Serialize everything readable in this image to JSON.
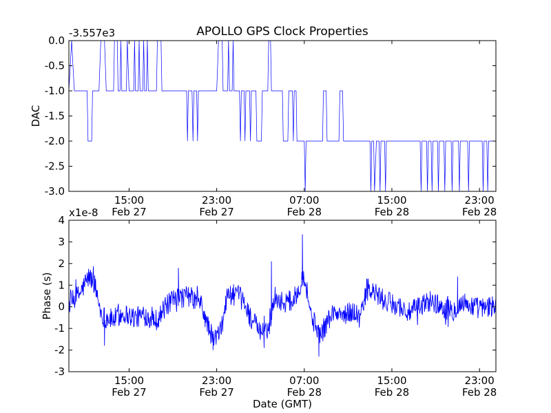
{
  "title": "APOLLO GPS Clock Properties",
  "colors": {
    "line": "#0000ff",
    "axes": "#000000",
    "background": "#ffffff"
  },
  "chart_data": [
    {
      "type": "line",
      "ylabel": "DAC",
      "xlabel": "",
      "offset_label": "-3.557e3",
      "xlim": [
        "Feb 27 09:30",
        "Feb 29 00:30"
      ],
      "ylim": [
        -3.0,
        0.0
      ],
      "yticks": [
        "0.0",
        "-0.5",
        "-1.0",
        "-1.5",
        "-2.0",
        "-2.5",
        "-3.0"
      ],
      "ytick_values": [
        0.0,
        -0.5,
        -1.0,
        -1.5,
        -2.0,
        -2.5,
        -3.0
      ],
      "xticks": [
        {
          "time": "15:00",
          "date": "Feb 27",
          "hour": 15
        },
        {
          "time": "23:00",
          "date": "Feb 27",
          "hour": 23
        },
        {
          "time": "07:00",
          "date": "Feb 28",
          "hour": 31
        },
        {
          "time": "15:00",
          "date": "Feb 28",
          "hour": 39
        },
        {
          "time": "23:00",
          "date": "Feb 28",
          "hour": 47
        }
      ],
      "grid": false,
      "series": [
        {
          "values": [
            {
              "x": "Feb 27 09:30",
              "y": -1.0
            },
            {
              "x": "Feb 27 09:45",
              "y": 0.0
            },
            {
              "x": "Feb 27 10:00",
              "y": -1.0
            },
            {
              "x": "Feb 27 11:10",
              "y": -1.0
            },
            {
              "x": "Feb 27 11:15",
              "y": -2.0
            },
            {
              "x": "Feb 27 11:35",
              "y": -2.0
            },
            {
              "x": "Feb 27 11:40",
              "y": -1.0
            },
            {
              "x": "Feb 27 12:15",
              "y": -1.0
            },
            {
              "x": "Feb 27 12:25",
              "y": 0.0
            },
            {
              "x": "Feb 27 12:45",
              "y": 0.0
            },
            {
              "x": "Feb 27 12:55",
              "y": -1.0
            },
            {
              "x": "Feb 27 13:35",
              "y": -1.0
            },
            {
              "x": "Feb 27 13:40",
              "y": 0.0
            },
            {
              "x": "Feb 27 13:55",
              "y": 0.0
            },
            {
              "x": "Feb 27 14:00",
              "y": -1.0
            },
            {
              "x": "Feb 27 14:10",
              "y": -1.0
            },
            {
              "x": "Feb 27 14:15",
              "y": 0.0
            },
            {
              "x": "Feb 27 14:20",
              "y": -1.0
            },
            {
              "x": "Feb 27 14:45",
              "y": -1.0
            },
            {
              "x": "Feb 27 14:50",
              "y": 0.0
            },
            {
              "x": "Feb 27 15:00",
              "y": -1.0
            },
            {
              "x": "Feb 27 15:25",
              "y": -1.0
            },
            {
              "x": "Feb 27 15:30",
              "y": 0.0
            },
            {
              "x": "Feb 27 15:35",
              "y": -1.0
            },
            {
              "x": "Feb 27 15:50",
              "y": -1.0
            },
            {
              "x": "Feb 27 15:55",
              "y": 0.0
            },
            {
              "x": "Feb 27 16:00",
              "y": -1.0
            },
            {
              "x": "Feb 27 16:15",
              "y": -1.0
            },
            {
              "x": "Feb 27 16:20",
              "y": 0.0
            },
            {
              "x": "Feb 27 16:25",
              "y": -1.0
            },
            {
              "x": "Feb 27 16:35",
              "y": -1.0
            },
            {
              "x": "Feb 27 16:40",
              "y": 0.0
            },
            {
              "x": "Feb 27 16:45",
              "y": -1.0
            },
            {
              "x": "Feb 27 17:30",
              "y": -1.0
            },
            {
              "x": "Feb 27 17:35",
              "y": 0.0
            },
            {
              "x": "Feb 27 17:55",
              "y": 0.0
            },
            {
              "x": "Feb 27 18:00",
              "y": -1.0
            },
            {
              "x": "Feb 27 20:15",
              "y": -1.0
            },
            {
              "x": "Feb 27 20:20",
              "y": -2.0
            },
            {
              "x": "Feb 27 20:25",
              "y": -1.0
            },
            {
              "x": "Feb 27 20:45",
              "y": -1.0
            },
            {
              "x": "Feb 27 20:50",
              "y": -2.0
            },
            {
              "x": "Feb 27 20:55",
              "y": -1.0
            },
            {
              "x": "Feb 27 21:10",
              "y": -1.0
            },
            {
              "x": "Feb 27 21:15",
              "y": -2.0
            },
            {
              "x": "Feb 27 21:20",
              "y": -1.0
            },
            {
              "x": "Feb 27 23:00",
              "y": -1.0
            },
            {
              "x": "Feb 27 23:10",
              "y": 0.0
            },
            {
              "x": "Feb 27 23:30",
              "y": 0.0
            },
            {
              "x": "Feb 27 23:35",
              "y": -1.0
            },
            {
              "x": "Feb 28 00:00",
              "y": -1.0
            },
            {
              "x": "Feb 28 00:05",
              "y": 0.0
            },
            {
              "x": "Feb 28 00:10",
              "y": -1.0
            },
            {
              "x": "Feb 28 00:25",
              "y": -1.0
            },
            {
              "x": "Feb 28 00:30",
              "y": 0.0
            },
            {
              "x": "Feb 28 00:35",
              "y": -1.0
            },
            {
              "x": "Feb 28 01:05",
              "y": -1.0
            },
            {
              "x": "Feb 28 01:10",
              "y": -2.0
            },
            {
              "x": "Feb 28 01:15",
              "y": -1.0
            },
            {
              "x": "Feb 28 01:30",
              "y": -1.0
            },
            {
              "x": "Feb 28 01:35",
              "y": -2.0
            },
            {
              "x": "Feb 28 01:40",
              "y": -1.0
            },
            {
              "x": "Feb 28 02:00",
              "y": -1.0
            },
            {
              "x": "Feb 28 02:05",
              "y": -2.0
            },
            {
              "x": "Feb 28 02:10",
              "y": -1.0
            },
            {
              "x": "Feb 28 02:35",
              "y": -1.0
            },
            {
              "x": "Feb 28 02:40",
              "y": -2.0
            },
            {
              "x": "Feb 28 03:05",
              "y": -2.0
            },
            {
              "x": "Feb 28 03:10",
              "y": -1.0
            },
            {
              "x": "Feb 28 03:40",
              "y": -1.0
            },
            {
              "x": "Feb 28 03:45",
              "y": 0.0
            },
            {
              "x": "Feb 28 03:55",
              "y": 0.0
            },
            {
              "x": "Feb 28 04:00",
              "y": -1.0
            },
            {
              "x": "Feb 28 05:00",
              "y": -1.0
            },
            {
              "x": "Feb 28 05:05",
              "y": -2.0
            },
            {
              "x": "Feb 28 05:30",
              "y": -2.0
            },
            {
              "x": "Feb 28 05:35",
              "y": -1.0
            },
            {
              "x": "Feb 28 05:55",
              "y": -1.0
            },
            {
              "x": "Feb 28 06:00",
              "y": -2.0
            },
            {
              "x": "Feb 28 06:05",
              "y": -1.0
            },
            {
              "x": "Feb 28 06:15",
              "y": -1.0
            },
            {
              "x": "Feb 28 06:20",
              "y": -2.0
            },
            {
              "x": "Feb 28 07:00",
              "y": -2.0
            },
            {
              "x": "Feb 28 07:05",
              "y": -3.0
            },
            {
              "x": "Feb 28 07:10",
              "y": -2.0
            },
            {
              "x": "Feb 28 08:40",
              "y": -2.0
            },
            {
              "x": "Feb 28 08:45",
              "y": -1.0
            },
            {
              "x": "Feb 28 09:00",
              "y": -1.0
            },
            {
              "x": "Feb 28 09:05",
              "y": -2.0
            },
            {
              "x": "Feb 28 10:10",
              "y": -2.0
            },
            {
              "x": "Feb 28 10:15",
              "y": -1.0
            },
            {
              "x": "Feb 28 10:30",
              "y": -1.0
            },
            {
              "x": "Feb 28 10:35",
              "y": -2.0
            },
            {
              "x": "Feb 28 13:00",
              "y": -2.0
            },
            {
              "x": "Feb 28 13:05",
              "y": -3.0
            },
            {
              "x": "Feb 28 13:10",
              "y": -2.0
            },
            {
              "x": "Feb 28 13:20",
              "y": -2.0
            },
            {
              "x": "Feb 28 13:25",
              "y": -3.0
            },
            {
              "x": "Feb 28 13:35",
              "y": -2.0
            },
            {
              "x": "Feb 28 13:50",
              "y": -2.0
            },
            {
              "x": "Feb 28 13:55",
              "y": -3.0
            },
            {
              "x": "Feb 28 14:00",
              "y": -2.0
            },
            {
              "x": "Feb 28 14:20",
              "y": -2.0
            },
            {
              "x": "Feb 28 14:25",
              "y": -3.0
            },
            {
              "x": "Feb 28 14:30",
              "y": -2.0
            },
            {
              "x": "Feb 28 17:35",
              "y": -2.0
            },
            {
              "x": "Feb 28 17:40",
              "y": -3.0
            },
            {
              "x": "Feb 28 17:45",
              "y": -2.0
            },
            {
              "x": "Feb 28 18:10",
              "y": -2.0
            },
            {
              "x": "Feb 28 18:15",
              "y": -3.0
            },
            {
              "x": "Feb 28 18:20",
              "y": -2.0
            },
            {
              "x": "Feb 28 18:35",
              "y": -2.0
            },
            {
              "x": "Feb 28 18:40",
              "y": -3.0
            },
            {
              "x": "Feb 28 18:45",
              "y": -2.0
            },
            {
              "x": "Feb 28 19:10",
              "y": -2.0
            },
            {
              "x": "Feb 28 19:15",
              "y": -3.0
            },
            {
              "x": "Feb 28 19:20",
              "y": -2.0
            },
            {
              "x": "Feb 28 19:45",
              "y": -2.0
            },
            {
              "x": "Feb 28 19:50",
              "y": -3.0
            },
            {
              "x": "Feb 28 19:55",
              "y": -2.0
            },
            {
              "x": "Feb 28 20:25",
              "y": -2.0
            },
            {
              "x": "Feb 28 20:30",
              "y": -3.0
            },
            {
              "x": "Feb 28 20:35",
              "y": -2.0
            },
            {
              "x": "Feb 28 21:05",
              "y": -2.0
            },
            {
              "x": "Feb 28 21:10",
              "y": -3.0
            },
            {
              "x": "Feb 28 21:15",
              "y": -2.0
            },
            {
              "x": "Feb 28 21:55",
              "y": -2.0
            },
            {
              "x": "Feb 28 22:00",
              "y": -3.0
            },
            {
              "x": "Feb 28 22:05",
              "y": -2.0
            },
            {
              "x": "Feb 28 23:15",
              "y": -2.0
            },
            {
              "x": "Feb 28 23:20",
              "y": -3.0
            },
            {
              "x": "Feb 28 23:25",
              "y": -2.0
            },
            {
              "x": "Feb 28 23:40",
              "y": -2.0
            },
            {
              "x": "Feb 28 23:45",
              "y": -3.0
            },
            {
              "x": "Feb 28 23:50",
              "y": -2.0
            },
            {
              "x": "Feb 29 00:30",
              "y": -2.0
            }
          ]
        }
      ]
    },
    {
      "type": "line",
      "ylabel": "Phase (s)",
      "xlabel": "Date (GMT)",
      "offset_label": "x1e-8",
      "xlim": [
        "Feb 27 09:30",
        "Feb 29 00:30"
      ],
      "ylim": [
        -3,
        4
      ],
      "yticks": [
        "4",
        "3",
        "2",
        "1",
        "0",
        "-1",
        "-2",
        "-3"
      ],
      "ytick_values": [
        4,
        3,
        2,
        1,
        0,
        -1,
        -2,
        -3
      ],
      "xticks": [
        {
          "time": "15:00",
          "date": "Feb 27",
          "hour": 15
        },
        {
          "time": "23:00",
          "date": "Feb 27",
          "hour": 23
        },
        {
          "time": "07:00",
          "date": "Feb 28",
          "hour": 31
        },
        {
          "time": "15:00",
          "date": "Feb 28",
          "hour": 39
        },
        {
          "time": "23:00",
          "date": "Feb 28",
          "hour": 47
        }
      ],
      "grid": false,
      "series": [
        {
          "values": [
            {
              "x": "Feb 27 09:30",
              "y": 0.1
            },
            {
              "x": "Feb 27 10:30",
              "y": 0.6
            },
            {
              "x": "Feb 27 11:20",
              "y": 1.4
            },
            {
              "x": "Feb 27 11:50",
              "y": 1.1
            },
            {
              "x": "Feb 27 12:30",
              "y": -0.4
            },
            {
              "x": "Feb 27 13:30",
              "y": -0.6
            },
            {
              "x": "Feb 27 14:30",
              "y": -0.3
            },
            {
              "x": "Feb 27 15:30",
              "y": -0.5
            },
            {
              "x": "Feb 27 16:30",
              "y": -0.4
            },
            {
              "x": "Feb 27 17:30",
              "y": -0.6
            },
            {
              "x": "Feb 27 18:30",
              "y": 0.1
            },
            {
              "x": "Feb 27 19:30",
              "y": 0.4
            },
            {
              "x": "Feb 27 20:30",
              "y": 0.5
            },
            {
              "x": "Feb 27 21:00",
              "y": 0.3
            },
            {
              "x": "Feb 27 21:30",
              "y": 0.2
            },
            {
              "x": "Feb 27 22:00",
              "y": -0.6
            },
            {
              "x": "Feb 27 22:40",
              "y": -1.5
            },
            {
              "x": "Feb 27 23:20",
              "y": -1.2
            },
            {
              "x": "Feb 28 00:00",
              "y": 0.6
            },
            {
              "x": "Feb 28 01:00",
              "y": 0.5
            },
            {
              "x": "Feb 28 01:30",
              "y": 0.2
            },
            {
              "x": "Feb 28 02:00",
              "y": -0.4
            },
            {
              "x": "Feb 28 03:00",
              "y": -1.2
            },
            {
              "x": "Feb 28 03:45",
              "y": -1.0
            },
            {
              "x": "Feb 28 04:20",
              "y": 0.5
            },
            {
              "x": "Feb 28 05:00",
              "y": 0.2
            },
            {
              "x": "Feb 28 06:00",
              "y": 0.3
            },
            {
              "x": "Feb 28 06:30",
              "y": 0.8
            },
            {
              "x": "Feb 28 06:50",
              "y": 1.5
            },
            {
              "x": "Feb 28 07:10",
              "y": 1.0
            },
            {
              "x": "Feb 28 07:40",
              "y": -0.5
            },
            {
              "x": "Feb 28 08:30",
              "y": -1.3
            },
            {
              "x": "Feb 28 09:30",
              "y": -0.3
            },
            {
              "x": "Feb 28 10:30",
              "y": -0.4
            },
            {
              "x": "Feb 28 11:30",
              "y": -0.2
            },
            {
              "x": "Feb 28 12:10",
              "y": -0.5
            },
            {
              "x": "Feb 28 12:40",
              "y": 0.8
            },
            {
              "x": "Feb 28 13:30",
              "y": 0.6
            },
            {
              "x": "Feb 28 14:30",
              "y": 0.2
            },
            {
              "x": "Feb 28 15:30",
              "y": 0.1
            },
            {
              "x": "Feb 28 16:30",
              "y": -0.3
            },
            {
              "x": "Feb 28 17:30",
              "y": 0.0
            },
            {
              "x": "Feb 28 18:30",
              "y": 0.3
            },
            {
              "x": "Feb 28 19:30",
              "y": 0.0
            },
            {
              "x": "Feb 28 20:30",
              "y": -0.2
            },
            {
              "x": "Feb 28 21:30",
              "y": 0.2
            },
            {
              "x": "Feb 28 22:30",
              "y": 0.0
            },
            {
              "x": "Feb 28 23:30",
              "y": -0.1
            },
            {
              "x": "Feb 29 00:30",
              "y": 0.1
            }
          ],
          "extremes": [
            {
              "x": "Feb 27 11:00",
              "y": 1.5
            },
            {
              "x": "Feb 27 12:45",
              "y": -1.8
            },
            {
              "x": "Feb 27 19:30",
              "y": 1.8
            },
            {
              "x": "Feb 27 22:40",
              "y": -2.0
            },
            {
              "x": "Feb 28 03:20",
              "y": -1.9
            },
            {
              "x": "Feb 28 04:00",
              "y": 2.1
            },
            {
              "x": "Feb 28 06:50",
              "y": 3.35
            },
            {
              "x": "Feb 28 08:20",
              "y": -2.3
            },
            {
              "x": "Feb 28 12:50",
              "y": 1.3
            },
            {
              "x": "Feb 28 21:00",
              "y": 1.4
            }
          ]
        }
      ]
    }
  ]
}
